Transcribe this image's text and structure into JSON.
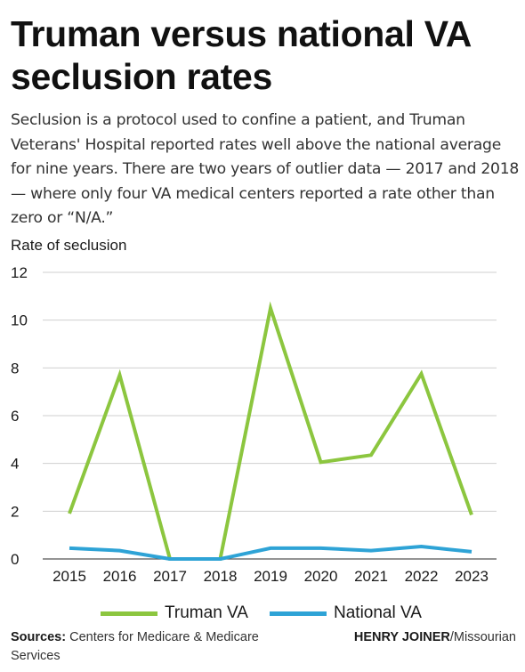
{
  "title": "Truman versus national VA seclusion rates",
  "subtitle": "Seclusion is a protocol used to confine a patient, and Truman Veterans' Hospital reported rates well above the national average for nine years. There are two years of outlier data — 2017 and 2018 — where only four VA medical centers reported a rate other than zero or “N/A.”",
  "footer": {
    "sources_label": "Sources:",
    "sources_text": "Centers for Medicare & Medicare Services",
    "credit_name": "HENRY JOINER",
    "credit_org": "/Missourian"
  },
  "chart_data": {
    "type": "line",
    "title": "Truman versus national VA seclusion rates",
    "ylabel": "Rate of seclusion",
    "xlabel": "",
    "x": [
      "2015",
      "2016",
      "2017",
      "2018",
      "2019",
      "2020",
      "2021",
      "2022",
      "2023"
    ],
    "ylim": [
      0,
      12
    ],
    "yticks": [
      0,
      2,
      4,
      6,
      8,
      10,
      12
    ],
    "grid": true,
    "legend": "bottom",
    "series": [
      {
        "name": "Truman VA",
        "color": "#8cc63f",
        "values": [
          1.9,
          7.7,
          0.0,
          0.0,
          10.5,
          4.05,
          4.35,
          7.75,
          1.85
        ]
      },
      {
        "name": "National VA",
        "color": "#2ea3d6",
        "values": [
          0.45,
          0.35,
          0.0,
          0.0,
          0.45,
          0.45,
          0.35,
          0.52,
          0.3
        ]
      }
    ]
  }
}
